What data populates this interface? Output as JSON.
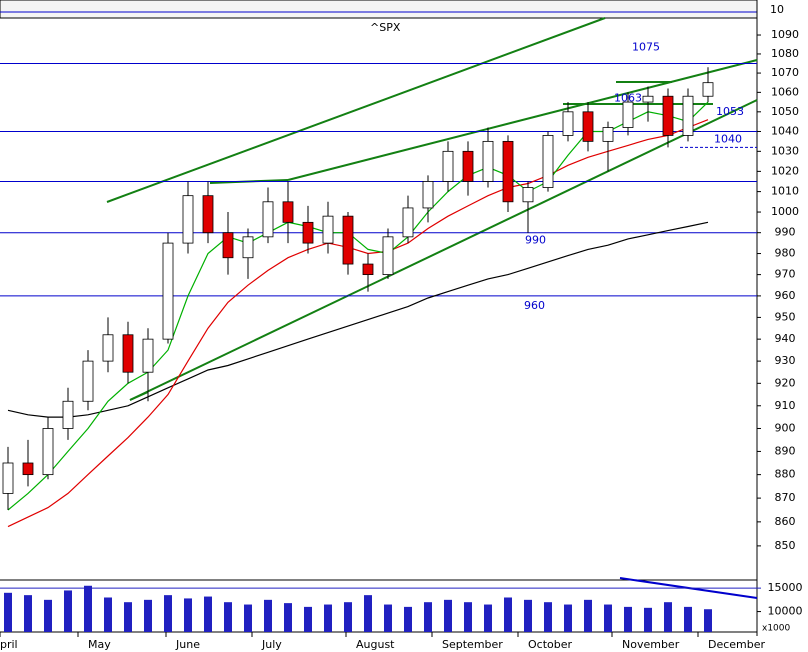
{
  "chart_data": {
    "type": "candlestick",
    "title": "^SPX",
    "log_scale": true,
    "ylim": [
      836,
      1098
    ],
    "yticks": [
      850,
      860,
      870,
      880,
      890,
      900,
      910,
      920,
      930,
      940,
      950,
      960,
      970,
      980,
      990,
      1000,
      1010,
      1020,
      1030,
      1040,
      1050,
      1060,
      1070,
      1080,
      1090
    ],
    "xlim": [
      -0.4,
      37.45
    ],
    "xticks": [
      {
        "value": -0.4,
        "label": "pril"
      },
      {
        "value": 3.5,
        "label": "May"
      },
      {
        "value": 7.9,
        "label": "June"
      },
      {
        "value": 12.2,
        "label": "July"
      },
      {
        "value": 16.9,
        "label": "August"
      },
      {
        "value": 21.2,
        "label": "September"
      },
      {
        "value": 25.5,
        "label": "October"
      },
      {
        "value": 30.2,
        "label": "November"
      },
      {
        "value": 34.5,
        "label": "December"
      }
    ],
    "x": [
      0,
      1,
      2,
      3,
      4,
      5,
      6,
      7,
      8,
      9,
      10,
      11,
      12,
      13,
      14,
      15,
      16,
      17,
      18,
      19,
      20,
      21,
      22,
      23,
      24,
      25,
      26,
      27,
      28,
      29,
      30,
      31,
      32,
      33,
      34,
      35
    ],
    "up_color": "#ffffff",
    "down_color": "#e00000",
    "candles": {
      "open": [
        872,
        885,
        880,
        900,
        912,
        930,
        942,
        925,
        940,
        985,
        1008,
        990,
        978,
        988,
        1005,
        995,
        985,
        998,
        975,
        970,
        988,
        1002,
        1015,
        1030,
        1015,
        1035,
        1005,
        1012,
        1038,
        1050,
        1035,
        1042,
        1055,
        1058,
        1038,
        1058
      ],
      "high": [
        892,
        895,
        905,
        918,
        935,
        950,
        948,
        945,
        990,
        1015,
        1015,
        1000,
        992,
        1012,
        1015,
        1003,
        1005,
        1000,
        980,
        992,
        1008,
        1018,
        1035,
        1035,
        1042,
        1038,
        1015,
        1040,
        1055,
        1055,
        1045,
        1060,
        1063,
        1062,
        1062,
        1073
      ],
      "low": [
        865,
        875,
        878,
        895,
        908,
        925,
        920,
        912,
        938,
        980,
        985,
        970,
        968,
        985,
        985,
        980,
        980,
        970,
        962,
        968,
        985,
        995,
        1010,
        1008,
        1012,
        1000,
        990,
        1010,
        1035,
        1030,
        1020,
        1038,
        1045,
        1032,
        1035,
        1055
      ],
      "close": [
        885,
        880,
        900,
        912,
        930,
        942,
        925,
        940,
        985,
        1008,
        990,
        978,
        988,
        1005,
        995,
        985,
        998,
        975,
        970,
        988,
        1002,
        1015,
        1030,
        1015,
        1035,
        1005,
        1012,
        1038,
        1050,
        1035,
        1042,
        1055,
        1058,
        1038,
        1058,
        1065
      ]
    },
    "series": [
      {
        "name": "MA200",
        "color": "#000000",
        "values": [
          908,
          906,
          905,
          905,
          906,
          908,
          910,
          914,
          918,
          922,
          926,
          928,
          931,
          934,
          937,
          940,
          943,
          946,
          949,
          952,
          955,
          959,
          962,
          965,
          968,
          970,
          973,
          976,
          979,
          982,
          984,
          987,
          989,
          991,
          993,
          995
        ]
      },
      {
        "name": "MA50",
        "color": "#e00000",
        "values": [
          858,
          862,
          866,
          872,
          880,
          888,
          896,
          905,
          915,
          930,
          945,
          957,
          965,
          972,
          978,
          982,
          985,
          983,
          980,
          981,
          985,
          992,
          998,
          1003,
          1008,
          1012,
          1014,
          1018,
          1023,
          1027,
          1030,
          1033,
          1036,
          1038,
          1042,
          1046
        ]
      },
      {
        "name": "MA20",
        "color": "#00b000",
        "values": [
          865,
          872,
          880,
          890,
          900,
          912,
          920,
          925,
          935,
          960,
          980,
          988,
          985,
          990,
          995,
          993,
          990,
          990,
          982,
          980,
          988,
          1000,
          1010,
          1018,
          1022,
          1018,
          1010,
          1015,
          1028,
          1040,
          1040,
          1045,
          1050,
          1048,
          1045,
          1055
        ]
      }
    ],
    "hlines": [
      1075,
      1040,
      1015,
      990,
      960
    ],
    "hline_color": "#0000cc",
    "dashed_level": 1032,
    "annotations": [
      1075,
      1063,
      1053,
      1040,
      990,
      960
    ],
    "indicator_tick": 10,
    "volume": {
      "color": "#2020c0",
      "ylim": [
        5650,
        16300
      ],
      "yticks": [
        15000,
        10000
      ],
      "unit_label": "x1000",
      "values": [
        14000,
        13500,
        12500,
        14500,
        15500,
        13000,
        12000,
        12500,
        13500,
        12800,
        13200,
        12000,
        11500,
        12500,
        11800,
        11000,
        11500,
        12000,
        13500,
        11500,
        11000,
        12000,
        12500,
        12000,
        11500,
        13000,
        12500,
        12000,
        11500,
        12500,
        11500,
        11000,
        10800,
        12000,
        11000,
        10500
      ]
    }
  }
}
